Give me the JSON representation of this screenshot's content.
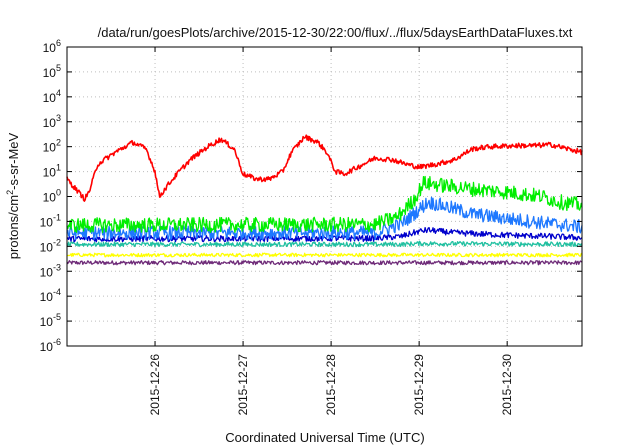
{
  "chart_data": {
    "type": "line",
    "title": "/data/run/goesPlots/archive/2015-12-30/22:00/flux/../flux/5daysEarthDataFluxes.txt",
    "xlabel": "Coordinated Universal Time (UTC)",
    "ylabel": {
      "pre": "protons/cm",
      "sup": "2",
      "post": "-s-sr-MeV"
    },
    "x_scale": "time",
    "xlim": [
      0,
      5.85
    ],
    "x_ticks": [
      {
        "pos": 1.0,
        "label": "2015-12-26"
      },
      {
        "pos": 2.0,
        "label": "2015-12-27"
      },
      {
        "pos": 3.0,
        "label": "2015-12-28"
      },
      {
        "pos": 4.0,
        "label": "2015-12-29"
      },
      {
        "pos": 5.0,
        "label": "2015-12-30"
      }
    ],
    "y_scale": "log",
    "ylim": [
      1e-06,
      1000000.0
    ],
    "y_ticks": [
      {
        "value": 1e-06,
        "base": "10",
        "exp": "-6"
      },
      {
        "value": 1e-05,
        "base": "10",
        "exp": "-5"
      },
      {
        "value": 0.0001,
        "base": "10",
        "exp": "-4"
      },
      {
        "value": 0.001,
        "base": "10",
        "exp": "-3"
      },
      {
        "value": 0.01,
        "base": "10",
        "exp": "-2"
      },
      {
        "value": 0.1,
        "base": "10",
        "exp": "-1"
      },
      {
        "value": 1.0,
        "base": "10",
        "exp": "0"
      },
      {
        "value": 10.0,
        "base": "10",
        "exp": "1"
      },
      {
        "value": 100.0,
        "base": "10",
        "exp": "2"
      },
      {
        "value": 1000.0,
        "base": "10",
        "exp": "3"
      },
      {
        "value": 10000.0,
        "base": "10",
        "exp": "4"
      },
      {
        "value": 100000.0,
        "base": "10",
        "exp": "5"
      },
      {
        "value": 1000000.0,
        "base": "10",
        "exp": "6"
      }
    ],
    "grid": true,
    "series": [
      {
        "color": "#6e2a78",
        "noise": 0.08,
        "points": [
          [
            0,
            0.0022
          ],
          [
            5.85,
            0.0022
          ]
        ]
      },
      {
        "color": "#ffff00",
        "noise": 0.07,
        "points": [
          [
            0,
            0.0045
          ],
          [
            5.85,
            0.0045
          ]
        ]
      },
      {
        "color": "#20c0a0",
        "noise": 0.09,
        "points": [
          [
            0,
            0.012
          ],
          [
            3.8,
            0.012
          ],
          [
            4.0,
            0.013
          ],
          [
            5.85,
            0.012
          ]
        ]
      },
      {
        "color": "#0000cc",
        "noise": 0.12,
        "points": [
          [
            0,
            0.02
          ],
          [
            3.5,
            0.021
          ],
          [
            3.8,
            0.025
          ],
          [
            4.0,
            0.04
          ],
          [
            4.1,
            0.045
          ],
          [
            4.4,
            0.035
          ],
          [
            5.0,
            0.028
          ],
          [
            5.5,
            0.025
          ],
          [
            5.85,
            0.022
          ]
        ]
      },
      {
        "color": "#1e78ff",
        "noise": 0.28,
        "points": [
          [
            0,
            0.035
          ],
          [
            3.5,
            0.035
          ],
          [
            3.8,
            0.08
          ],
          [
            4.0,
            0.3
          ],
          [
            4.1,
            0.6
          ],
          [
            4.3,
            0.4
          ],
          [
            4.6,
            0.2
          ],
          [
            5.0,
            0.13
          ],
          [
            5.5,
            0.08
          ],
          [
            5.85,
            0.06
          ]
        ]
      },
      {
        "color": "#00ee00",
        "noise": 0.3,
        "points": [
          [
            0,
            0.07
          ],
          [
            3.5,
            0.075
          ],
          [
            3.75,
            0.15
          ],
          [
            3.95,
            0.8
          ],
          [
            4.05,
            3.5
          ],
          [
            4.2,
            3.0
          ],
          [
            4.6,
            2.0
          ],
          [
            5.0,
            1.5
          ],
          [
            5.4,
            1.0
          ],
          [
            5.6,
            0.6
          ],
          [
            5.85,
            0.45
          ]
        ]
      },
      {
        "color": "#ff0000",
        "noise": 0.1,
        "points": [
          [
            0,
            5
          ],
          [
            0.1,
            2
          ],
          [
            0.2,
            0.8
          ],
          [
            0.25,
            1.5
          ],
          [
            0.35,
            20
          ],
          [
            0.55,
            60
          ],
          [
            0.75,
            150
          ],
          [
            0.9,
            80
          ],
          [
            1.0,
            10
          ],
          [
            1.05,
            1
          ],
          [
            1.15,
            3
          ],
          [
            1.25,
            8
          ],
          [
            1.4,
            30
          ],
          [
            1.6,
            100
          ],
          [
            1.75,
            200
          ],
          [
            1.9,
            80
          ],
          [
            2.0,
            8
          ],
          [
            2.15,
            5
          ],
          [
            2.3,
            5
          ],
          [
            2.45,
            10
          ],
          [
            2.55,
            60
          ],
          [
            2.7,
            250
          ],
          [
            2.85,
            150
          ],
          [
            2.95,
            60
          ],
          [
            3.05,
            10
          ],
          [
            3.15,
            8
          ],
          [
            3.3,
            15
          ],
          [
            3.5,
            35
          ],
          [
            3.7,
            30
          ],
          [
            3.85,
            20
          ],
          [
            4.0,
            15
          ],
          [
            4.2,
            20
          ],
          [
            4.4,
            30
          ],
          [
            4.6,
            80
          ],
          [
            4.8,
            100
          ],
          [
            5.1,
            110
          ],
          [
            5.3,
            110
          ],
          [
            5.5,
            120
          ],
          [
            5.7,
            80
          ],
          [
            5.85,
            60
          ]
        ]
      }
    ]
  }
}
